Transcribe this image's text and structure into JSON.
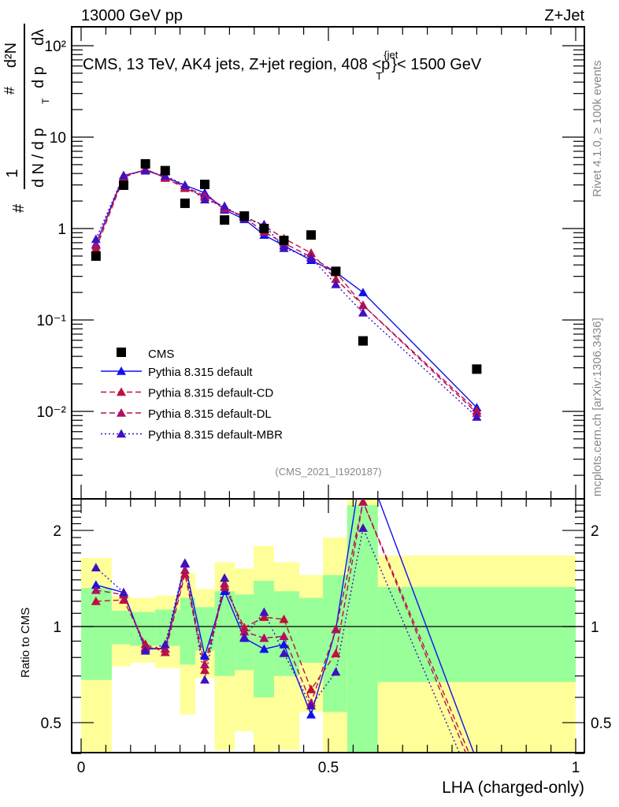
{
  "header": {
    "left": "13000 GeV pp",
    "right": "Z+Jet"
  },
  "side_text": {
    "rivet": "Rivet 4.1.0, ≥ 100k events",
    "mcplots": "mcplots.cern.ch [arXiv:1306.3436]"
  },
  "analysis_id": "(CMS_2021_I1920187)",
  "chart_data": {
    "type": "scatter",
    "title": "CMS, 13 TeV, AK4 jets, Z+jet region, 408 <p_T^{jet}< 1500 GeV",
    "title_main": "CMS, 13 TeV, AK4 jets, Z+jet region, 408 <p",
    "title_sup": "{jet",
    "title_sub": "T",
    "title_end": "}< 1500 GeV",
    "ylabel": "1/(dN/dp_T) d²N/(dp_T dλ)",
    "ylabel_parts": {
      "hash1": "#",
      "num1": "1",
      "den1": "d N / d p",
      "sub_T": "T",
      "hash2": "#",
      "num2": "d²N",
      "den2": "d p",
      "dl": "dλ"
    },
    "xlabel": "LHA (charged-only)",
    "ratio_ylabel": "Ratio to CMS",
    "xlim": [
      0,
      1
    ],
    "ylim": [
      0.0011,
      140
    ],
    "yscale": "log",
    "ratio_ylim": [
      0.4,
      2.5
    ],
    "x_tick_labels": [
      "0",
      "0.5",
      "1"
    ],
    "x_tick_values": [
      0,
      0.5,
      1
    ],
    "y_tick_labels": [
      "10²",
      "10",
      "1",
      "10⁻¹",
      "10⁻²"
    ],
    "y_tick_values": [
      100,
      10,
      1,
      0.1,
      0.01
    ],
    "ratio_tick_labels": [
      "2",
      "1",
      "0.5"
    ],
    "ratio_tick_values": [
      2,
      1,
      0.5
    ],
    "legend_position": "middle-left",
    "x": [
      0.03,
      0.086,
      0.13,
      0.17,
      0.21,
      0.25,
      0.29,
      0.33,
      0.37,
      0.41,
      0.465,
      0.515,
      0.57,
      0.8
    ],
    "data": {
      "name": "CMS",
      "color": "#000000",
      "values": [
        0.5,
        2.98,
        5.1,
        4.3,
        1.89,
        3.04,
        1.24,
        1.37,
        1.0,
        0.74,
        0.85,
        0.34,
        0.059,
        0.029
      ]
    },
    "series": [
      {
        "name": "Pythia 8.315 default",
        "color": "#1010f0",
        "style": "solid",
        "values": [
          0.675,
          3.81,
          4.34,
          3.66,
          2.97,
          2.46,
          1.6,
          1.26,
          0.85,
          0.65,
          0.45,
          0.333,
          0.2,
          0.011
        ]
      },
      {
        "name": "Pythia 8.315 default-CD",
        "color": "#c0103c",
        "style": "dashed",
        "values": [
          0.6,
          3.61,
          4.49,
          3.57,
          2.76,
          2.22,
          1.65,
          1.36,
          1.07,
          0.78,
          0.54,
          0.28,
          0.145,
          0.0102
        ]
      },
      {
        "name": "Pythia 8.315 default-DL",
        "color": "#b01060",
        "style": "dashed",
        "values": [
          0.65,
          3.75,
          4.39,
          3.66,
          2.84,
          2.31,
          1.69,
          1.32,
          0.92,
          0.69,
          0.49,
          0.333,
          0.145,
          0.0096
        ]
      },
      {
        "name": "Pythia 8.315 default-MBR",
        "color": "#4010c0",
        "style": "dotted",
        "values": [
          0.765,
          3.81,
          4.28,
          3.78,
          2.99,
          2.07,
          1.76,
          1.27,
          1.11,
          0.61,
          0.48,
          0.245,
          0.12,
          0.0087
        ]
      }
    ],
    "uncertainty_bands": {
      "bin_edges": [
        0,
        0.062,
        0.1,
        0.15,
        0.2,
        0.231,
        0.27,
        0.311,
        0.349,
        0.39,
        0.441,
        0.489,
        0.538,
        0.6,
        1.0
      ],
      "outer_color": "#ffff99",
      "inner_color": "#99ff99",
      "outer_lo": [
        0.3,
        0.75,
        0.77,
        0.74,
        0.53,
        0.69,
        0.41,
        0.47,
        0.3,
        0.41,
        0.54,
        0.3,
        0.3,
        0.3
      ],
      "inner_lo": [
        0.68,
        0.88,
        0.87,
        0.87,
        0.76,
        0.84,
        0.7,
        0.73,
        0.6,
        0.7,
        0.77,
        0.54,
        0.3,
        0.67
      ],
      "inner_hi": [
        1.32,
        1.12,
        1.11,
        1.13,
        1.23,
        1.15,
        1.29,
        1.26,
        1.39,
        1.29,
        1.23,
        1.45,
        2.4,
        1.33
      ],
      "outer_hi": [
        1.64,
        1.25,
        1.23,
        1.25,
        1.47,
        1.31,
        1.59,
        1.52,
        1.79,
        1.59,
        1.45,
        1.9,
        2.6,
        1.67
      ]
    }
  }
}
